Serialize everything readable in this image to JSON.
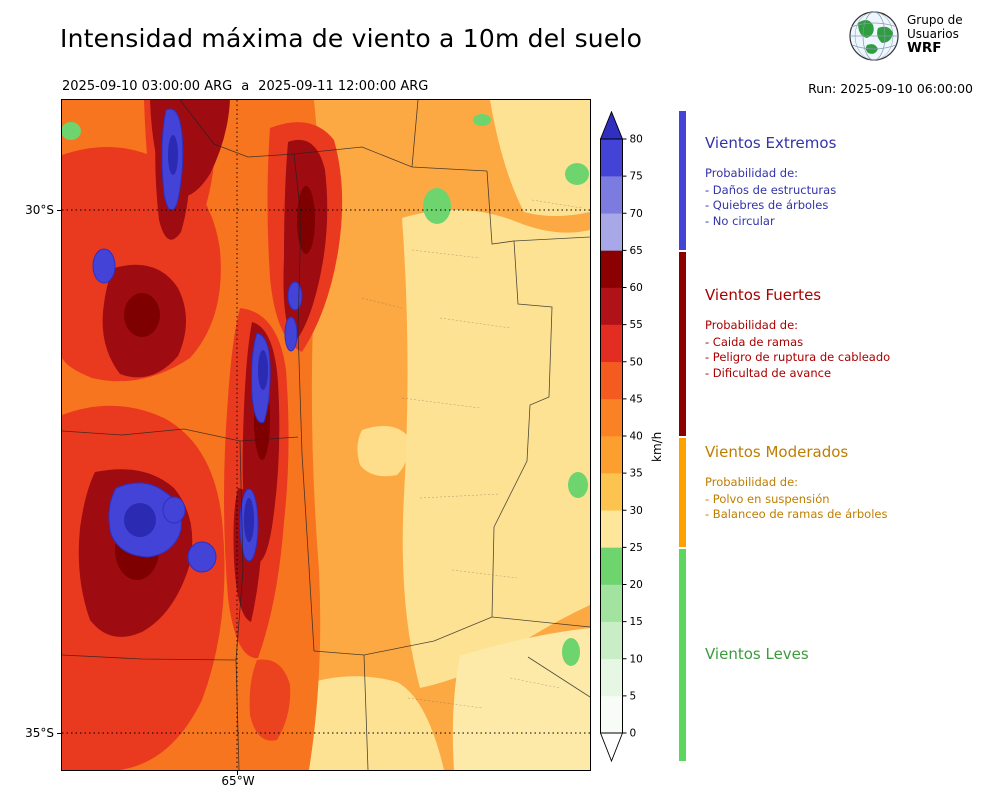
{
  "header": {
    "title": "Intensidad máxima de viento a 10m del suelo",
    "period_start": "2025-09-10 03:00:00 ARG",
    "period_word": "a",
    "period_end": "2025-09-11 12:00:00 ARG",
    "run_label": "Run: 2025-09-10 06:00:00",
    "logo_line1": "Grupo de",
    "logo_line2": "Usuarios",
    "logo_line3": "WRF"
  },
  "map_axes": {
    "lat_top": "30°S",
    "lat_bottom": "35°S",
    "lon": "65°W"
  },
  "chart_data": {
    "type": "heatmap",
    "title": "Intensidad máxima de viento a 10m del suelo",
    "valid_period": "2025-09-10 03:00:00 ARG a 2025-09-11 12:00:00 ARG",
    "model_run": "2025-09-10 06:00:00",
    "units": "km/h",
    "x_axis": {
      "tick_labels": [
        "65°W"
      ]
    },
    "y_axis": {
      "tick_labels": [
        "30°S",
        "35°S"
      ]
    },
    "colorbar": {
      "label": "km/h",
      "tick_values": [
        0,
        5,
        10,
        15,
        20,
        25,
        30,
        35,
        40,
        45,
        50,
        55,
        60,
        65,
        70,
        75,
        80
      ],
      "segment_colors_low_to_high": [
        "#f8fcf6",
        "#e6f7e3",
        "#c9eec6",
        "#a2e3a0",
        "#6ed46e",
        "#fee79b",
        "#fdc34f",
        "#fd9f2e",
        "#fb8125",
        "#f35b21",
        "#e32c22",
        "#b11218",
        "#8b0000",
        "#a8a8e8",
        "#7b7be0",
        "#4343d8"
      ],
      "under_color": "#ffffff",
      "over_color": "#2f2fc0"
    },
    "wind_categories": [
      {
        "name": "Vientos Leves",
        "range_kmh": [
          0,
          25
        ]
      },
      {
        "name": "Vientos Moderados",
        "range_kmh": [
          25,
          40
        ]
      },
      {
        "name": "Vientos Fuertes",
        "range_kmh": [
          40,
          65
        ]
      },
      {
        "name": "Vientos Extremos",
        "range_kmh": [
          65,
          80
        ]
      }
    ]
  },
  "legend": {
    "sections": [
      {
        "title": "Vientos Extremos",
        "text_color": "#3333aa",
        "bar_color": "#4343d8",
        "prob_title": "Probabilidad de:",
        "items": [
          "- Daños de estructuras",
          "- Quiebres de árboles",
          "- No circular"
        ]
      },
      {
        "title": "Vientos Fuertes",
        "text_color": "#aa0000",
        "bar_color": "#8b0000",
        "prob_title": "Probabilidad de:",
        "items": [
          "- Caida de ramas",
          "- Peligro de ruptura de cableado",
          "- Dificultad de avance"
        ]
      },
      {
        "title": "Vientos Moderados",
        "text_color": "#bf7d00",
        "bar_color": "#ffa200",
        "prob_title": "Probabilidad de:",
        "items": [
          "- Polvo en suspensión",
          "- Balanceo de ramas de árboles"
        ]
      },
      {
        "title": "Vientos Leves",
        "text_color": "#3c9b3c",
        "bar_color": "#5cd65c",
        "prob_title": "",
        "items": []
      }
    ]
  }
}
